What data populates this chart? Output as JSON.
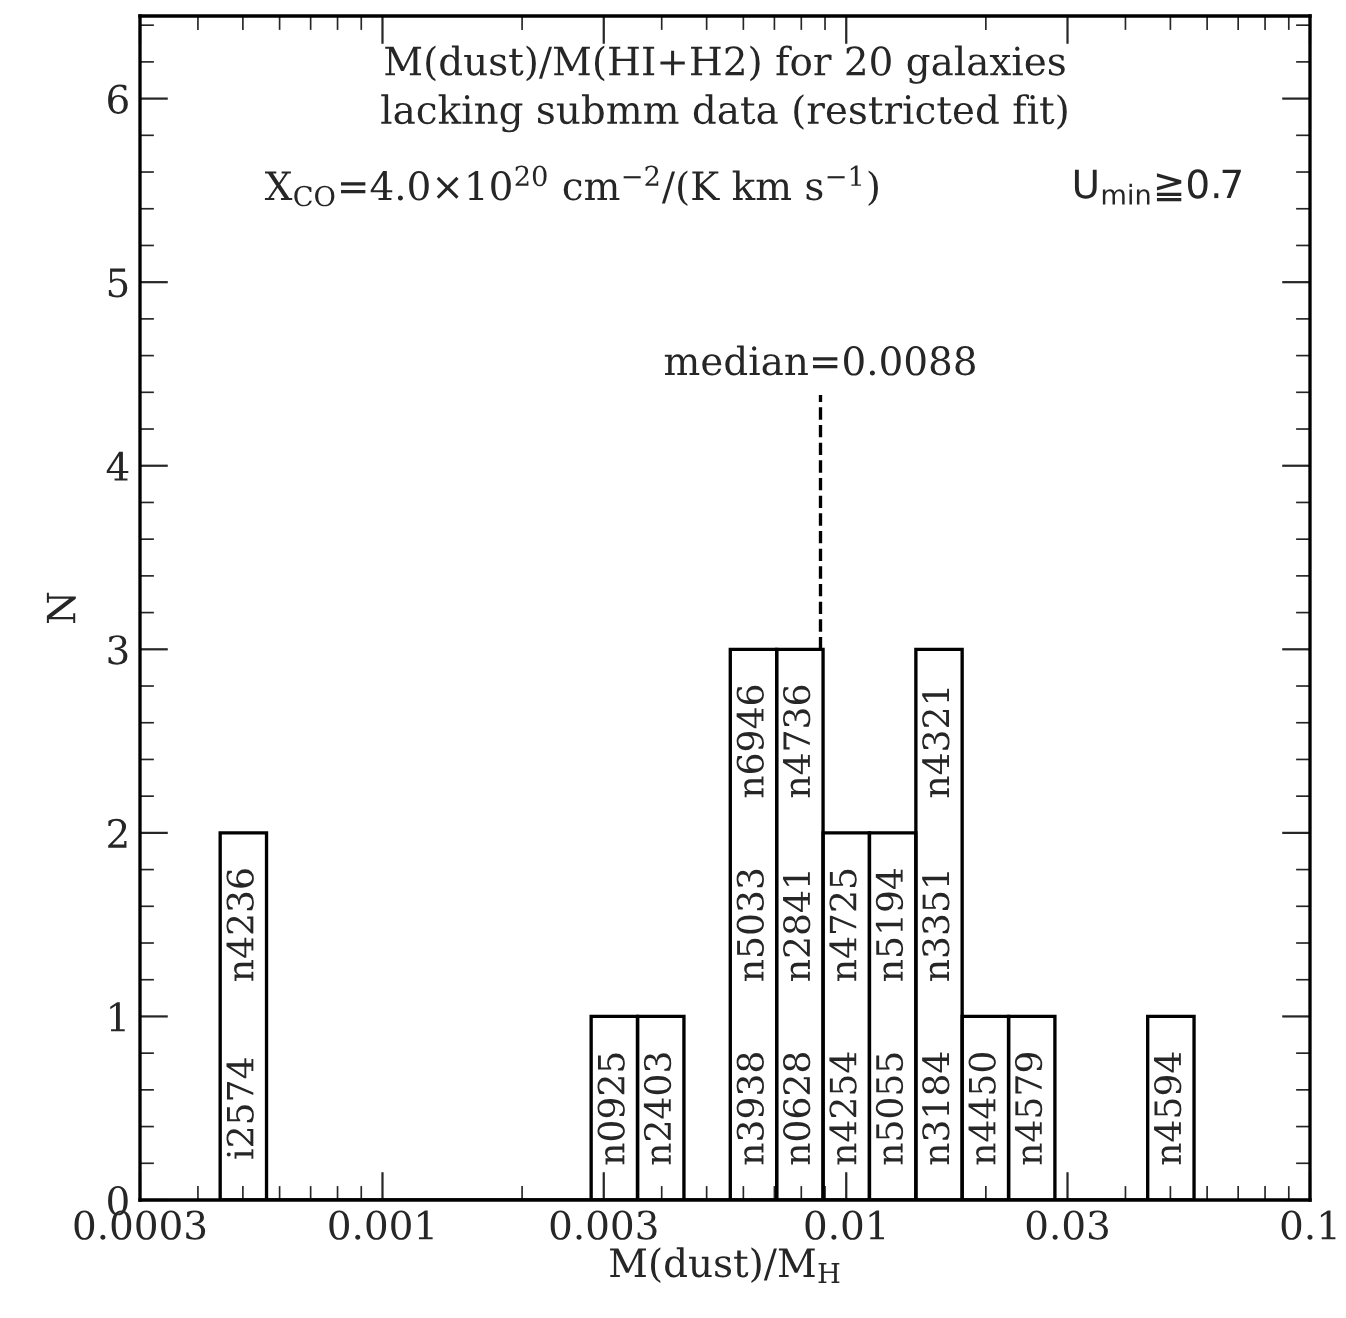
{
  "chart_data": {
    "type": "histogram",
    "title": "M(dust)/M(HI+H2) for 20 galaxies\nlacking submm data (restricted fit)",
    "xlabel": "M(dust)/M$_{H}$",
    "ylabel": "N",
    "bins": [
      0.0004467,
      0.0005623,
      0.0007079,
      0.0008913,
      0.001122,
      0.001413,
      0.001778,
      0.002239,
      0.002818,
      0.003548,
      0.004467,
      0.005623,
      0.007079,
      0.008913,
      0.01122,
      0.01413,
      0.01778,
      0.02239,
      0.02818,
      0.03548,
      0.04467,
      0.05623
    ],
    "values": [
      2,
      0,
      0,
      0,
      0,
      0,
      0,
      0,
      1,
      1,
      0,
      3,
      3,
      2,
      2,
      3,
      1,
      1,
      0,
      0,
      1
    ],
    "color": "#000000",
    "log": "x",
    "xlim": [
      0.0003,
      0.1
    ],
    "xticks": [
      0.0003,
      0.001,
      0.003,
      0.01,
      0.03,
      0.1
    ],
    "ylim": [
      0,
      6.45
    ],
    "yticks": [
      0,
      1,
      2,
      3,
      4,
      5,
      6
    ],
    "grid": false,
    "legend": false,
    "ref_lines": [
      {
        "axis": "x",
        "value": 0.0088,
        "label": "median=0.0088",
        "line_style": "dashed",
        "color": "#000000"
      }
    ],
    "annotations": [
      "X$_{CO}$=4.0×10$^{20}$ cm$^{−2}$/(K km s$^{−1}$)",
      "U$_{min}$≧0.7",
      "i2574",
      "n4236",
      "n0925",
      "n2403",
      "n3938",
      "n5033",
      "n6946",
      "n0628",
      "n2841",
      "n4736",
      "n4254",
      "n4725",
      "n5055",
      "n5194",
      "n3184",
      "n3351",
      "n4321",
      "n4450",
      "n4579",
      "n4594"
    ]
  }
}
